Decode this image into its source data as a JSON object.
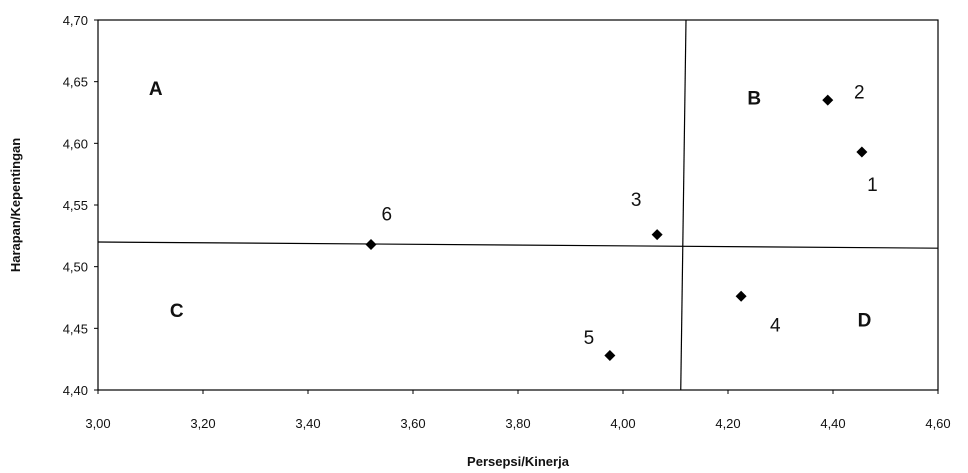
{
  "chart_data": {
    "type": "scatter",
    "xlabel": "Persepsi/Kinerja",
    "ylabel": "Harapan/Kepentingan",
    "xlim": [
      3.0,
      4.6
    ],
    "ylim": [
      4.4,
      4.7
    ],
    "x_ticks": [
      "3,00",
      "3,20",
      "3,40",
      "3,60",
      "3,80",
      "4,00",
      "4,20",
      "4,40",
      "4,60"
    ],
    "y_ticks": [
      "4,40",
      "4,45",
      "4,50",
      "4,55",
      "4,60",
      "4,65",
      "4,70"
    ],
    "grid": false,
    "marker": "diamond",
    "colors": {
      "marker": "#000000",
      "lines": "#000000"
    },
    "divider_vertical": {
      "x_top": 4.12,
      "x_bottom": 4.11
    },
    "divider_horizontal": {
      "y_left": 4.52,
      "y_right": 4.515
    },
    "quadrants": [
      {
        "label": "A",
        "x": 3.11,
        "y": 4.645
      },
      {
        "label": "B",
        "x": 4.25,
        "y": 4.637
      },
      {
        "label": "C",
        "x": 3.15,
        "y": 4.465
      },
      {
        "label": "D",
        "x": 4.46,
        "y": 4.457
      }
    ],
    "points": [
      {
        "label": "1",
        "x": 4.455,
        "y": 4.593,
        "label_x": 4.475,
        "label_y": 4.567
      },
      {
        "label": "2",
        "x": 4.39,
        "y": 4.635,
        "label_x": 4.45,
        "label_y": 4.642
      },
      {
        "label": "3",
        "x": 4.065,
        "y": 4.526,
        "label_x": 4.025,
        "label_y": 4.555
      },
      {
        "label": "4",
        "x": 4.225,
        "y": 4.476,
        "label_x": 4.29,
        "label_y": 4.453
      },
      {
        "label": "5",
        "x": 3.975,
        "y": 4.428,
        "label_x": 3.935,
        "label_y": 4.443
      },
      {
        "label": "6",
        "x": 3.52,
        "y": 4.518,
        "label_x": 3.55,
        "label_y": 4.543
      }
    ]
  }
}
